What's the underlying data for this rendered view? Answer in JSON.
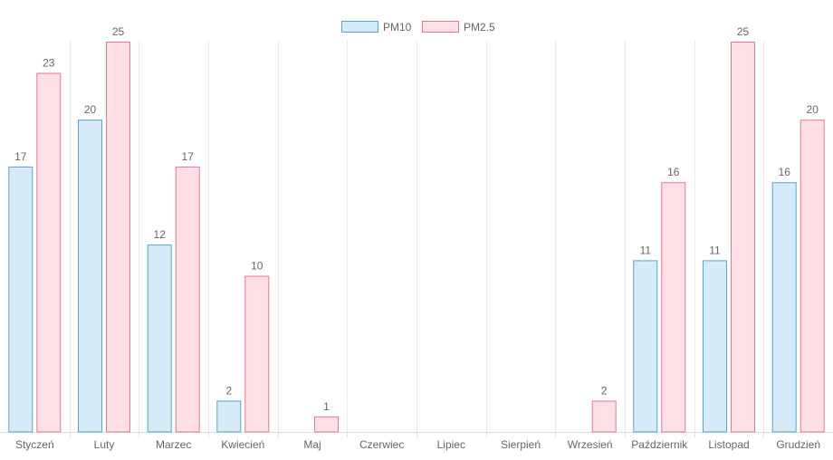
{
  "chart_data": {
    "type": "bar",
    "title": "",
    "xlabel": "",
    "ylabel": "",
    "ylim": [
      0,
      25
    ],
    "grid": "vertical",
    "legend_position": "top",
    "categories": [
      "Styczeń",
      "Luty",
      "Marzec",
      "Kwiecień",
      "Maj",
      "Czerwiec",
      "Lipiec",
      "Sierpień",
      "Wrzesień",
      "Październik",
      "Listopad",
      "Grudzień"
    ],
    "series": [
      {
        "name": "PM10",
        "fill": "#d6ebf8",
        "stroke": "#5ba3cc",
        "values": [
          17,
          20,
          12,
          2,
          null,
          null,
          null,
          null,
          null,
          11,
          11,
          16
        ]
      },
      {
        "name": "PM2.5",
        "fill": "#ffdfe6",
        "stroke": "#df7a93",
        "values": [
          23,
          25,
          17,
          10,
          1,
          null,
          null,
          null,
          2,
          16,
          25,
          20
        ]
      }
    ]
  }
}
